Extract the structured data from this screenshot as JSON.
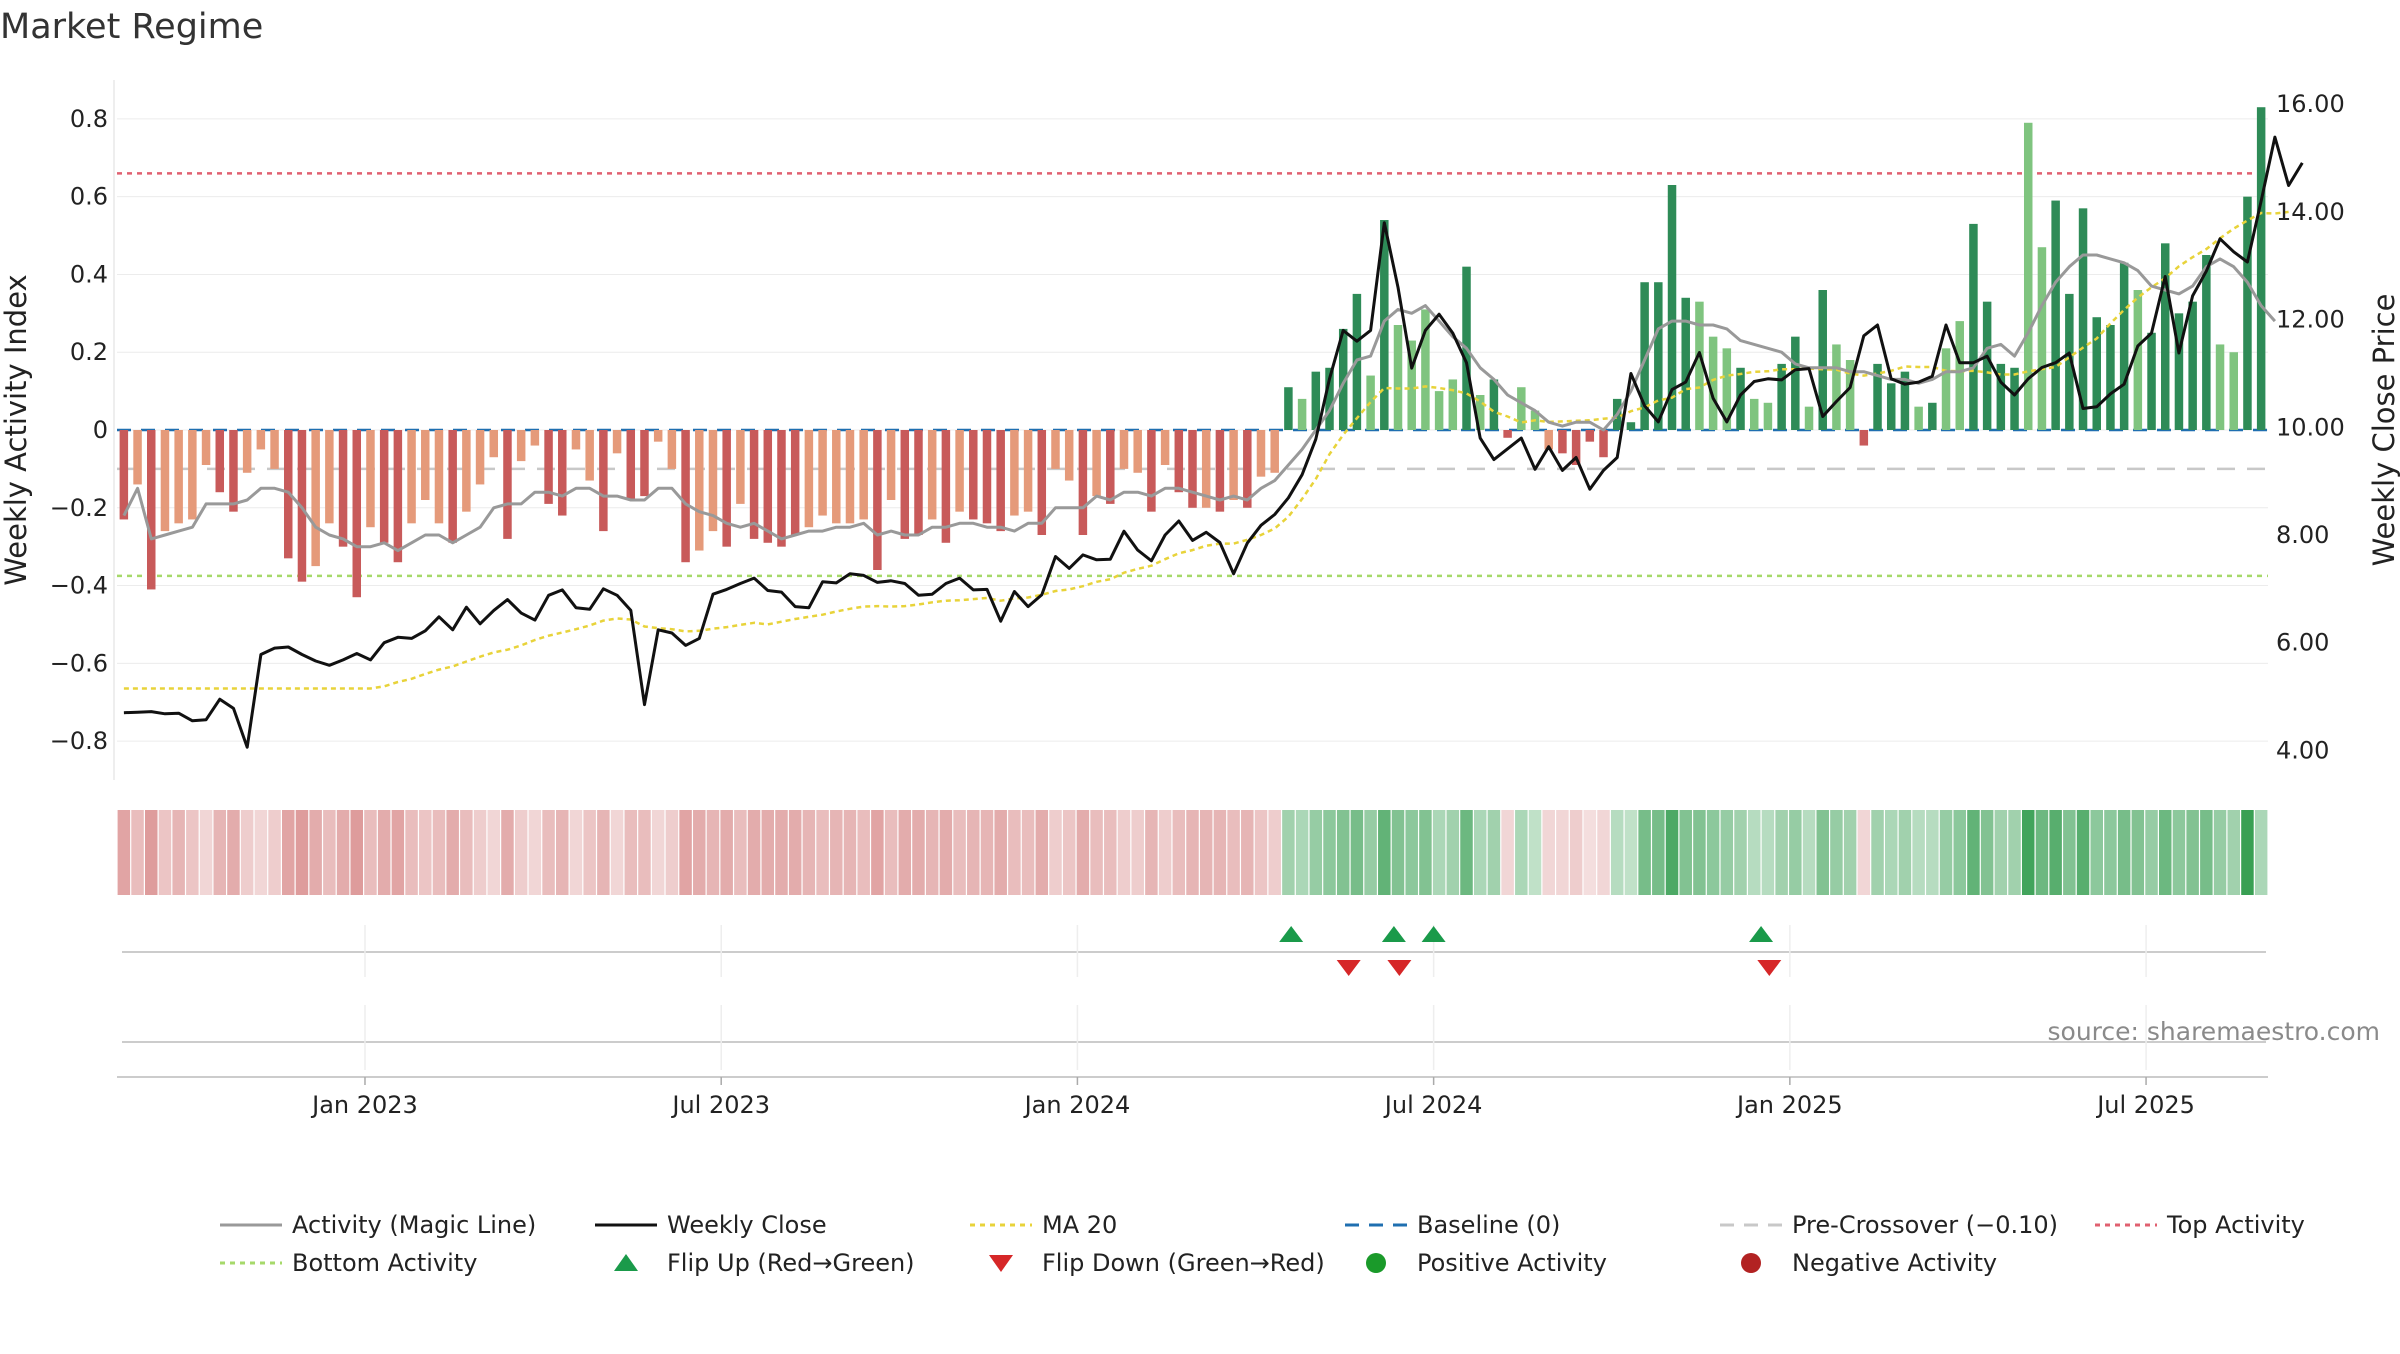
{
  "chart_data": {
    "type": "bar",
    "title": "Market Regime",
    "source": "source: sharemaestro.com",
    "y_left_label": "Weekly Activity Index",
    "y_right_label": "Weekly Close Price",
    "y_left_ticks": [
      "0.8",
      "0.6",
      "0.4",
      "0.2",
      "0",
      "−0.2",
      "−0.4",
      "−0.6",
      "−0.8"
    ],
    "y_left_tick_values": [
      0.8,
      0.6,
      0.4,
      0.2,
      0,
      -0.2,
      -0.4,
      -0.6,
      -0.8
    ],
    "y_right_ticks": [
      "16.00",
      "14.00",
      "12.00",
      "10.00",
      "8.00",
      "6.00",
      "4.00"
    ],
    "y_right_tick_values": [
      16,
      14,
      12,
      10,
      8,
      6,
      4
    ],
    "ylim_left": [
      -0.9,
      0.9
    ],
    "ylim_right": [
      3.45,
      16.45
    ],
    "x_ticks": [
      "Jan 2023",
      "Jul 2023",
      "Jan 2024",
      "Jul 2024",
      "Jan 2025",
      "Jul 2025"
    ],
    "x_tick_weeks": [
      17.6,
      43.6,
      69.6,
      95.6,
      121.6,
      147.6
    ],
    "week_count": 157,
    "reference_lines": {
      "baseline": 0,
      "pre_crossover": -0.1,
      "top_activity": 0.66,
      "bottom_activity": -0.375
    },
    "colors": {
      "neg_strong": "#c85a5a",
      "neg_weak": "#e59a7a",
      "pos_strong": "#2e8b57",
      "pos_weak": "#7fc47f",
      "magic_line": "#999999",
      "close_line": "#111111",
      "ma20": "#e8d33a",
      "baseline": "#1f6fb0",
      "pre_crossover": "#c8c8c8",
      "top_activity": "#e06070",
      "bottom_activity": "#a6d96a",
      "flip_up": "#1a9a4a",
      "flip_down": "#d62728",
      "positive_dot": "#1a9a2a",
      "negative_dot": "#b22222"
    },
    "activity": [
      -0.23,
      -0.14,
      -0.41,
      -0.26,
      -0.24,
      -0.23,
      -0.09,
      -0.16,
      -0.21,
      -0.11,
      -0.05,
      -0.1,
      -0.33,
      -0.39,
      -0.35,
      -0.24,
      -0.3,
      -0.43,
      -0.25,
      -0.29,
      -0.34,
      -0.24,
      -0.18,
      -0.24,
      -0.29,
      -0.21,
      -0.14,
      -0.07,
      -0.28,
      -0.08,
      -0.04,
      -0.19,
      -0.22,
      -0.05,
      -0.13,
      -0.26,
      -0.06,
      -0.18,
      -0.17,
      -0.03,
      -0.1,
      -0.34,
      -0.31,
      -0.26,
      -0.3,
      -0.19,
      -0.28,
      -0.29,
      -0.3,
      -0.27,
      -0.25,
      -0.22,
      -0.24,
      -0.24,
      -0.23,
      -0.36,
      -0.18,
      -0.28,
      -0.27,
      -0.23,
      -0.29,
      -0.21,
      -0.23,
      -0.24,
      -0.26,
      -0.22,
      -0.21,
      -0.27,
      -0.1,
      -0.13,
      -0.27,
      -0.17,
      -0.19,
      -0.1,
      -0.11,
      -0.21,
      -0.09,
      -0.16,
      -0.2,
      -0.2,
      -0.21,
      -0.18,
      -0.2,
      -0.12,
      -0.11,
      0.11,
      0.08,
      0.15,
      0.16,
      0.26,
      0.35,
      0.14,
      0.54,
      0.27,
      0.23,
      0.31,
      0.1,
      0.13,
      0.42,
      0.09,
      0.13,
      -0.02,
      0.11,
      0.05,
      -0.05,
      -0.06,
      -0.09,
      -0.03,
      -0.07,
      0.08,
      0.02,
      0.38,
      0.38,
      0.63,
      0.34,
      0.33,
      0.24,
      0.21,
      0.16,
      0.08,
      0.07,
      0.17,
      0.24,
      0.06,
      0.36,
      0.22,
      0.18,
      -0.04,
      0.17,
      0.12,
      0.15,
      0.06,
      0.07,
      0.21,
      0.28,
      0.53,
      0.33,
      0.17,
      0.16,
      0.79,
      0.47,
      0.59,
      0.35,
      0.57,
      0.29,
      0.27,
      0.43,
      0.36,
      0.25,
      0.48,
      0.3,
      0.33,
      0.45,
      0.22,
      0.2,
      0.6,
      0.83
    ],
    "close": [
      4.7,
      4.71,
      4.72,
      4.68,
      4.69,
      4.55,
      4.57,
      4.95,
      4.78,
      4.06,
      5.78,
      5.9,
      5.92,
      5.78,
      5.66,
      5.58,
      5.68,
      5.8,
      5.68,
      6.0,
      6.1,
      6.08,
      6.22,
      6.48,
      6.24,
      6.66,
      6.35,
      6.6,
      6.8,
      6.55,
      6.42,
      6.88,
      6.98,
      6.65,
      6.62,
      7.0,
      6.88,
      6.6,
      4.85,
      6.24,
      6.18,
      5.95,
      6.08,
      6.9,
      6.99,
      7.1,
      7.2,
      6.97,
      6.94,
      6.67,
      6.65,
      7.13,
      7.11,
      7.28,
      7.25,
      7.12,
      7.15,
      7.1,
      6.88,
      6.9,
      7.1,
      7.2,
      6.98,
      6.99,
      6.4,
      6.95,
      6.67,
      6.89,
      7.6,
      7.38,
      7.63,
      7.54,
      7.55,
      8.07,
      7.72,
      7.52,
      8.0,
      8.26,
      7.9,
      8.05,
      7.86,
      7.28,
      7.85,
      8.18,
      8.38,
      8.69,
      9.12,
      9.78,
      10.9,
      11.8,
      11.6,
      11.8,
      13.8,
      12.6,
      11.1,
      11.8,
      12.1,
      11.75,
      11.2,
      9.8,
      9.4,
      9.6,
      9.8,
      9.22,
      9.64,
      9.2,
      9.44,
      8.85,
      9.2,
      9.44,
      11.0,
      10.4,
      10.1,
      10.7,
      10.84,
      11.39,
      10.54,
      10.1,
      10.6,
      10.85,
      10.9,
      10.88,
      11.07,
      11.09,
      10.2,
      10.48,
      10.74,
      11.7,
      11.9,
      10.9,
      10.8,
      10.84,
      10.95,
      11.9,
      11.2,
      11.2,
      11.32,
      10.84,
      10.6,
      10.9,
      11.11,
      11.2,
      11.38,
      10.35,
      10.38,
      10.62,
      10.8,
      11.51,
      11.75,
      12.8,
      11.38,
      12.44,
      12.9,
      13.5,
      13.26,
      13.07,
      14.2,
      15.39,
      14.49,
      14.91
    ],
    "ma20": [
      5.15,
      5.15,
      5.15,
      5.15,
      5.15,
      5.15,
      5.15,
      5.15,
      5.15,
      5.15,
      5.15,
      5.15,
      5.15,
      5.15,
      5.15,
      5.15,
      5.15,
      5.15,
      5.15,
      5.19,
      5.27,
      5.33,
      5.42,
      5.5,
      5.56,
      5.65,
      5.74,
      5.82,
      5.87,
      5.95,
      6.05,
      6.13,
      6.19,
      6.25,
      6.32,
      6.41,
      6.45,
      6.43,
      6.3,
      6.27,
      6.25,
      6.21,
      6.22,
      6.26,
      6.29,
      6.33,
      6.37,
      6.34,
      6.39,
      6.44,
      6.48,
      6.52,
      6.58,
      6.63,
      6.67,
      6.68,
      6.67,
      6.68,
      6.71,
      6.75,
      6.78,
      6.79,
      6.81,
      6.83,
      6.78,
      6.82,
      6.84,
      6.89,
      6.96,
      6.99,
      7.05,
      7.13,
      7.18,
      7.3,
      7.37,
      7.43,
      7.55,
      7.66,
      7.72,
      7.8,
      7.84,
      7.84,
      7.91,
      8.0,
      8.12,
      8.34,
      8.67,
      9.04,
      9.5,
      9.86,
      10.17,
      10.47,
      10.73,
      10.72,
      10.72,
      10.76,
      10.73,
      10.69,
      10.63,
      10.48,
      10.29,
      10.2,
      10.09,
      10.13,
      10.1,
      10.11,
      10.12,
      10.13,
      10.16,
      10.18,
      10.3,
      10.37,
      10.5,
      10.55,
      10.71,
      10.74,
      10.88,
      10.96,
      10.99,
      11.03,
      11.04,
      11.08,
      11.08,
      11.09,
      11.08,
      11.07,
      11.0,
      10.96,
      11.0,
      11.05,
      11.13,
      11.12,
      11.12,
      11.05,
      11.04,
      11.05,
      11.02,
      10.98,
      10.98,
      11.04,
      11.08,
      11.12,
      11.3,
      11.48,
      11.65,
      11.93,
      12.18,
      12.41,
      12.6,
      12.77,
      12.99,
      13.16,
      13.31,
      13.51,
      13.69,
      13.84,
      13.98,
      13.97,
      14.0
    ],
    "magic": [
      -0.22,
      -0.15,
      -0.28,
      -0.27,
      -0.26,
      -0.25,
      -0.19,
      -0.19,
      -0.19,
      -0.18,
      -0.15,
      -0.15,
      -0.16,
      -0.2,
      -0.25,
      -0.27,
      -0.28,
      -0.3,
      -0.3,
      -0.29,
      -0.31,
      -0.29,
      -0.27,
      -0.27,
      -0.29,
      -0.27,
      -0.25,
      -0.2,
      -0.19,
      -0.19,
      -0.16,
      -0.16,
      -0.17,
      -0.15,
      -0.15,
      -0.17,
      -0.17,
      -0.18,
      -0.18,
      -0.15,
      -0.15,
      -0.19,
      -0.21,
      -0.22,
      -0.24,
      -0.25,
      -0.24,
      -0.26,
      -0.28,
      -0.27,
      -0.26,
      -0.26,
      -0.25,
      -0.25,
      -0.24,
      -0.27,
      -0.26,
      -0.27,
      -0.27,
      -0.25,
      -0.25,
      -0.24,
      -0.24,
      -0.25,
      -0.25,
      -0.26,
      -0.24,
      -0.24,
      -0.2,
      -0.2,
      -0.2,
      -0.17,
      -0.18,
      -0.16,
      -0.16,
      -0.17,
      -0.15,
      -0.15,
      -0.16,
      -0.17,
      -0.18,
      -0.17,
      -0.18,
      -0.15,
      -0.13,
      -0.09,
      -0.05,
      0.0,
      0.05,
      0.12,
      0.18,
      0.19,
      0.28,
      0.31,
      0.3,
      0.32,
      0.28,
      0.24,
      0.21,
      0.16,
      0.13,
      0.09,
      0.07,
      0.05,
      0.02,
      0.01,
      0.02,
      0.02,
      0.0,
      0.04,
      0.1,
      0.18,
      0.26,
      0.28,
      0.28,
      0.27,
      0.27,
      0.26,
      0.23,
      0.22,
      0.21,
      0.2,
      0.17,
      0.16,
      0.16,
      0.16,
      0.15,
      0.15,
      0.14,
      0.13,
      0.13,
      0.12,
      0.13,
      0.15,
      0.15,
      0.16,
      0.21,
      0.22,
      0.19,
      0.25,
      0.32,
      0.38,
      0.42,
      0.45,
      0.45,
      0.44,
      0.43,
      0.41,
      0.37,
      0.36,
      0.35,
      0.37,
      0.42,
      0.44,
      0.42,
      0.38,
      0.32,
      0.28
    ],
    "strong": [
      1,
      0,
      1,
      0,
      0,
      0,
      0,
      1,
      1,
      0,
      0,
      0,
      1,
      1,
      0,
      0,
      1,
      1,
      0,
      1,
      1,
      0,
      0,
      0,
      1,
      0,
      0,
      0,
      1,
      0,
      0,
      1,
      1,
      0,
      0,
      1,
      0,
      1,
      1,
      0,
      0,
      1,
      0,
      0,
      1,
      0,
      1,
      1,
      1,
      1,
      0,
      0,
      0,
      0,
      0,
      1,
      0,
      1,
      1,
      0,
      1,
      0,
      1,
      1,
      1,
      0,
      0,
      1,
      0,
      0,
      1,
      0,
      1,
      0,
      0,
      1,
      0,
      1,
      1,
      0,
      1,
      0,
      1,
      0,
      0,
      1,
      0,
      1,
      1,
      1,
      1,
      0,
      1,
      0,
      0,
      0,
      0,
      0,
      1,
      0,
      1,
      1,
      0,
      0,
      0,
      1,
      1,
      1,
      1,
      1,
      1,
      1,
      1,
      1,
      1,
      0,
      0,
      0,
      1,
      0,
      0,
      1,
      1,
      0,
      1,
      0,
      0,
      1,
      1,
      1,
      1,
      0,
      1,
      0,
      0,
      1,
      1,
      1,
      1,
      0,
      0,
      1,
      1,
      1,
      1,
      1,
      1,
      0,
      1,
      1,
      1,
      1,
      1,
      0,
      0,
      1,
      1
    ],
    "strip_alpha": [
      0.55,
      0.4,
      0.6,
      0.35,
      0.45,
      0.35,
      0.25,
      0.45,
      0.5,
      0.3,
      0.25,
      0.3,
      0.55,
      0.6,
      0.5,
      0.4,
      0.5,
      0.6,
      0.4,
      0.5,
      0.55,
      0.4,
      0.35,
      0.4,
      0.5,
      0.4,
      0.3,
      0.25,
      0.5,
      0.3,
      0.25,
      0.4,
      0.45,
      0.25,
      0.35,
      0.45,
      0.25,
      0.4,
      0.4,
      0.25,
      0.3,
      0.55,
      0.5,
      0.45,
      0.5,
      0.4,
      0.5,
      0.5,
      0.5,
      0.5,
      0.45,
      0.4,
      0.45,
      0.45,
      0.4,
      0.55,
      0.4,
      0.5,
      0.5,
      0.45,
      0.5,
      0.4,
      0.45,
      0.45,
      0.5,
      0.4,
      0.4,
      0.5,
      0.3,
      0.35,
      0.5,
      0.4,
      0.4,
      0.3,
      0.3,
      0.45,
      0.3,
      0.4,
      0.45,
      0.45,
      0.45,
      0.4,
      0.45,
      0.35,
      0.3,
      0.45,
      0.4,
      0.5,
      0.55,
      0.6,
      0.65,
      0.5,
      0.75,
      0.6,
      0.55,
      0.6,
      0.4,
      0.45,
      0.7,
      0.4,
      0.45,
      0.25,
      0.4,
      0.3,
      0.25,
      0.25,
      0.3,
      0.2,
      0.25,
      0.35,
      0.3,
      0.65,
      0.65,
      0.85,
      0.6,
      0.6,
      0.55,
      0.5,
      0.45,
      0.35,
      0.35,
      0.45,
      0.5,
      0.35,
      0.6,
      0.5,
      0.45,
      0.25,
      0.45,
      0.4,
      0.45,
      0.35,
      0.35,
      0.5,
      0.55,
      0.75,
      0.6,
      0.45,
      0.45,
      0.9,
      0.7,
      0.8,
      0.6,
      0.8,
      0.55,
      0.55,
      0.65,
      0.6,
      0.5,
      0.7,
      0.55,
      0.6,
      0.65,
      0.5,
      0.45,
      0.95,
      0.4
    ],
    "flip_up_weeks": [
      85.2,
      92.7,
      95.6,
      119.5
    ],
    "flip_down_weeks": [
      89.4,
      93.1,
      120.1
    ],
    "legend": [
      {
        "label": "Activity (Magic Line)",
        "kind": "line",
        "color": "#999999",
        "dash": ""
      },
      {
        "label": "Weekly Close",
        "kind": "line",
        "color": "#111111",
        "dash": ""
      },
      {
        "label": "MA 20",
        "kind": "line",
        "color": "#e8d33a",
        "dash": "5,5"
      },
      {
        "label": "Baseline (0)",
        "kind": "line",
        "color": "#1f6fb0",
        "dash": "14,10"
      },
      {
        "label": "Pre-Crossover (−0.10)",
        "kind": "line",
        "color": "#c8c8c8",
        "dash": "14,10"
      },
      {
        "label": "Top Activity",
        "kind": "line",
        "color": "#e06070",
        "dash": "5,5"
      },
      {
        "label": "Bottom Activity",
        "kind": "line",
        "color": "#a6d96a",
        "dash": "5,5"
      },
      {
        "label": "Flip Up (Red→Green)",
        "kind": "up",
        "color": "#1a9a4a"
      },
      {
        "label": "Flip Down (Green→Red)",
        "kind": "down",
        "color": "#d62728"
      },
      {
        "label": "Positive Activity",
        "kind": "dot",
        "color": "#1a9a2a"
      },
      {
        "label": "Negative Activity",
        "kind": "dot",
        "color": "#b22222"
      }
    ]
  }
}
